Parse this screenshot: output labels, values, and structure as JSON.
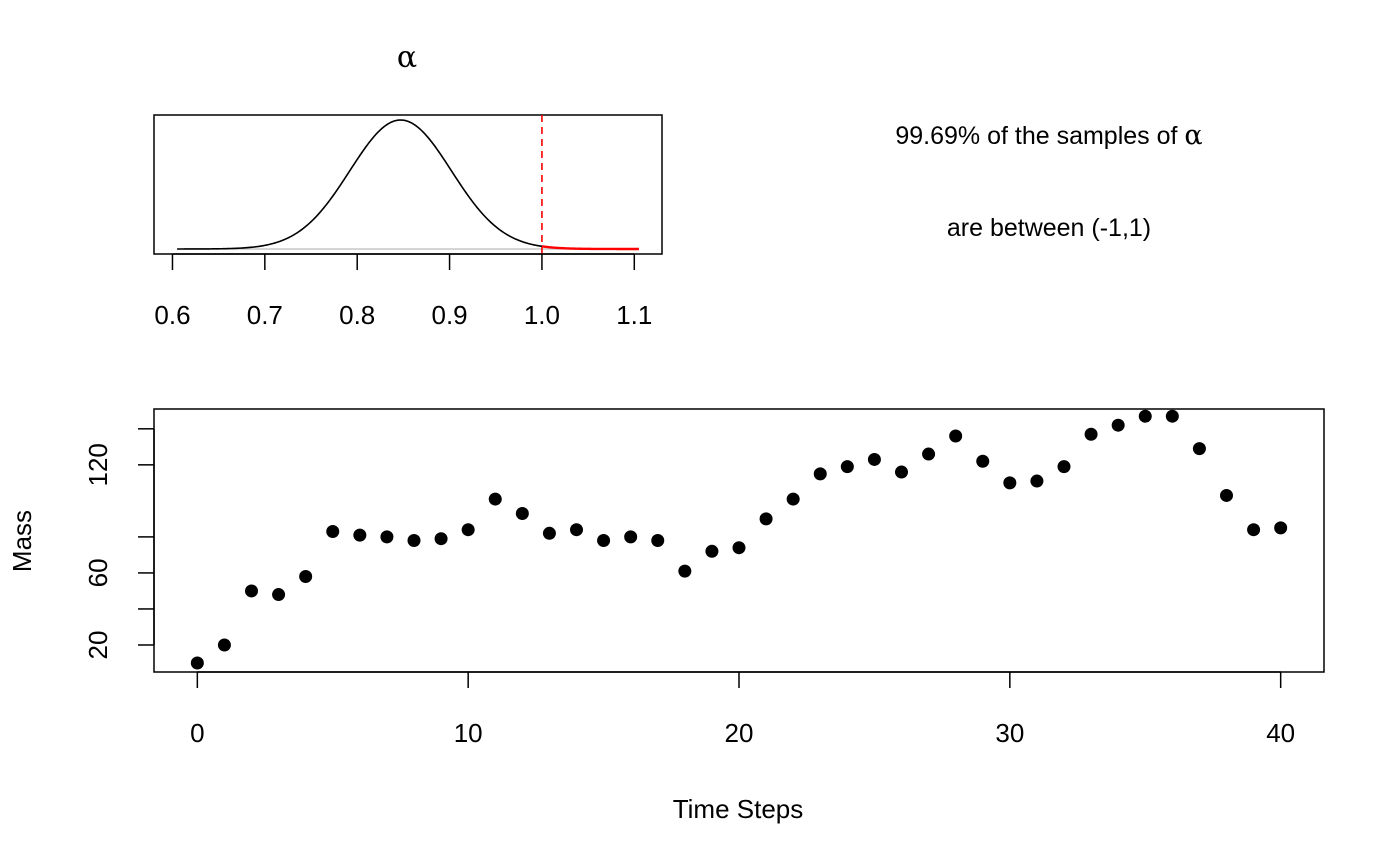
{
  "chart_data": [
    {
      "type": "line",
      "title": "α",
      "xlim": [
        0.58,
        1.13
      ],
      "x_ticks": [
        "0.6",
        "0.7",
        "0.8",
        "0.9",
        "1.0",
        "1.1"
      ],
      "x_tick_values": [
        0.6,
        0.7,
        0.8,
        0.9,
        1.0,
        1.1
      ],
      "y_axis_shown": false,
      "reference_line": {
        "x": 1.0,
        "style": "dashed",
        "color": "#ff0000"
      },
      "colors": {
        "density": "#000000",
        "tail": "#ff0000",
        "baseline": "#bebebe"
      },
      "density": {
        "mean": 0.847,
        "sd": 0.055,
        "x_from": 0.605,
        "x_to": 1.105
      },
      "annotation": {
        "line1_prefix": "99.69% of the samples of ",
        "line1_symbol": "α",
        "line2": "are between (-1,1)"
      }
    },
    {
      "type": "scatter",
      "xlabel": "Time Steps",
      "ylabel": "Mass",
      "xlim": [
        -1.6,
        41.6
      ],
      "ylim": [
        5,
        151
      ],
      "x_ticks": [
        "0",
        "10",
        "20",
        "30",
        "40"
      ],
      "x_tick_values": [
        0,
        10,
        20,
        30,
        40
      ],
      "y_ticks": [
        "20",
        "",
        "60",
        "",
        "120",
        ""
      ],
      "y_tick_values": [
        20,
        40,
        60,
        80,
        120,
        140
      ],
      "point_color": "#000000",
      "x": [
        0,
        1,
        2,
        3,
        4,
        5,
        6,
        7,
        8,
        9,
        10,
        11,
        12,
        13,
        14,
        15,
        16,
        17,
        18,
        19,
        20,
        21,
        22,
        23,
        24,
        25,
        26,
        27,
        28,
        29,
        30,
        31,
        32,
        33,
        34,
        35,
        36,
        37,
        38,
        39,
        40
      ],
      "y": [
        10,
        20,
        50,
        48,
        58,
        83,
        81,
        80,
        78,
        79,
        84,
        101,
        93,
        82,
        84,
        78,
        80,
        78,
        61,
        72,
        74,
        90,
        101,
        115,
        119,
        123,
        116,
        126,
        136,
        122,
        110,
        111,
        119,
        137,
        142,
        147,
        147,
        129,
        103,
        84,
        85
      ]
    }
  ]
}
